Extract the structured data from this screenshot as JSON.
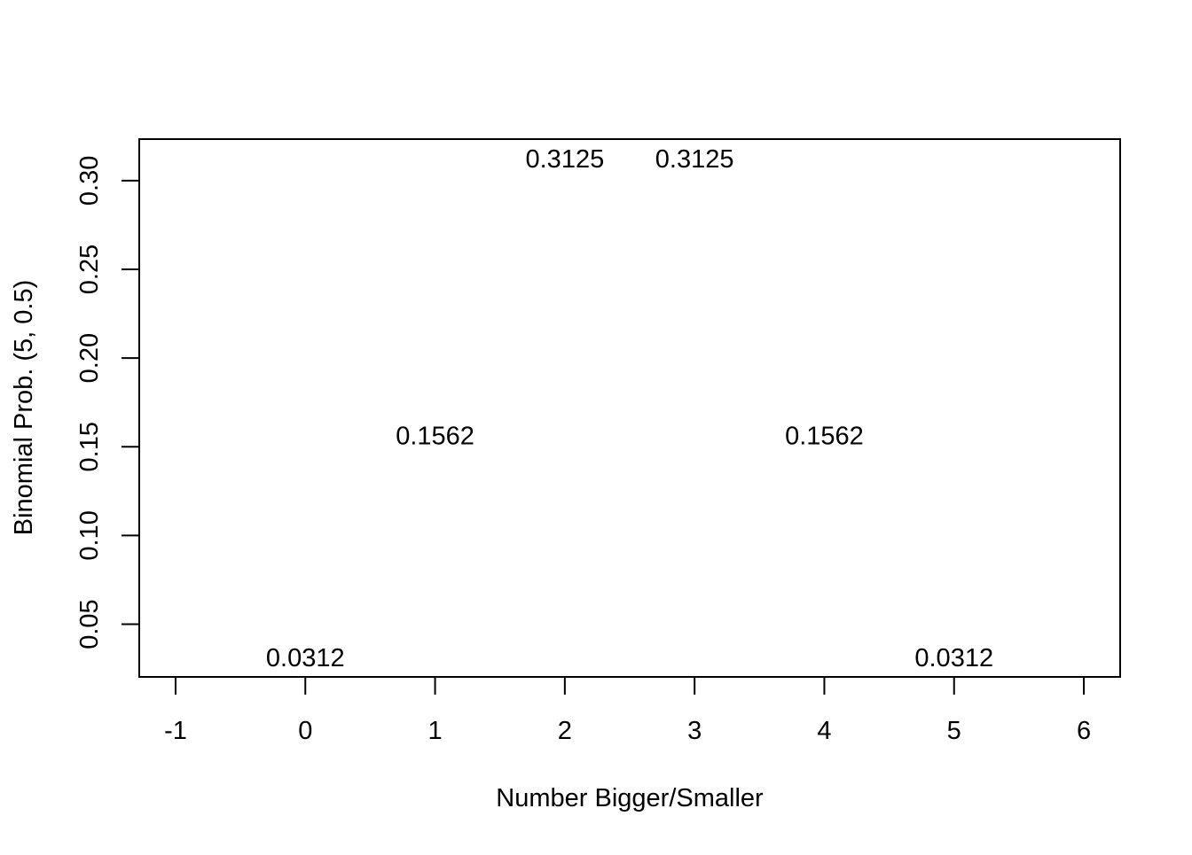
{
  "chart_data": {
    "type": "scatter",
    "title": "",
    "xlabel": "Number Bigger/Smaller",
    "ylabel": "Binomial Prob. (5, 0.5)",
    "x": [
      0,
      1,
      2,
      3,
      4,
      5
    ],
    "y": [
      0.03125,
      0.15625,
      0.3125,
      0.3125,
      0.15625,
      0.03125
    ],
    "point_labels": [
      "0.0312",
      "0.1562",
      "0.3125",
      "0.3125",
      "0.1562",
      "0.0312"
    ],
    "xlim": [
      -1.28,
      6.28
    ],
    "ylim": [
      0.0203,
      0.3234
    ],
    "x_ticks": [
      -1,
      0,
      1,
      2,
      3,
      4,
      5,
      6
    ],
    "x_tick_labels": [
      "-1",
      "0",
      "1",
      "2",
      "3",
      "4",
      "5",
      "6"
    ],
    "y_ticks": [
      0.05,
      0.1,
      0.15,
      0.2,
      0.25,
      0.3
    ],
    "y_tick_labels": [
      "0.05",
      "0.10",
      "0.15",
      "0.20",
      "0.25",
      "0.30"
    ],
    "grid": false,
    "legend": "none",
    "colors": {
      "foreground": "#000000",
      "background": "#ffffff"
    }
  }
}
